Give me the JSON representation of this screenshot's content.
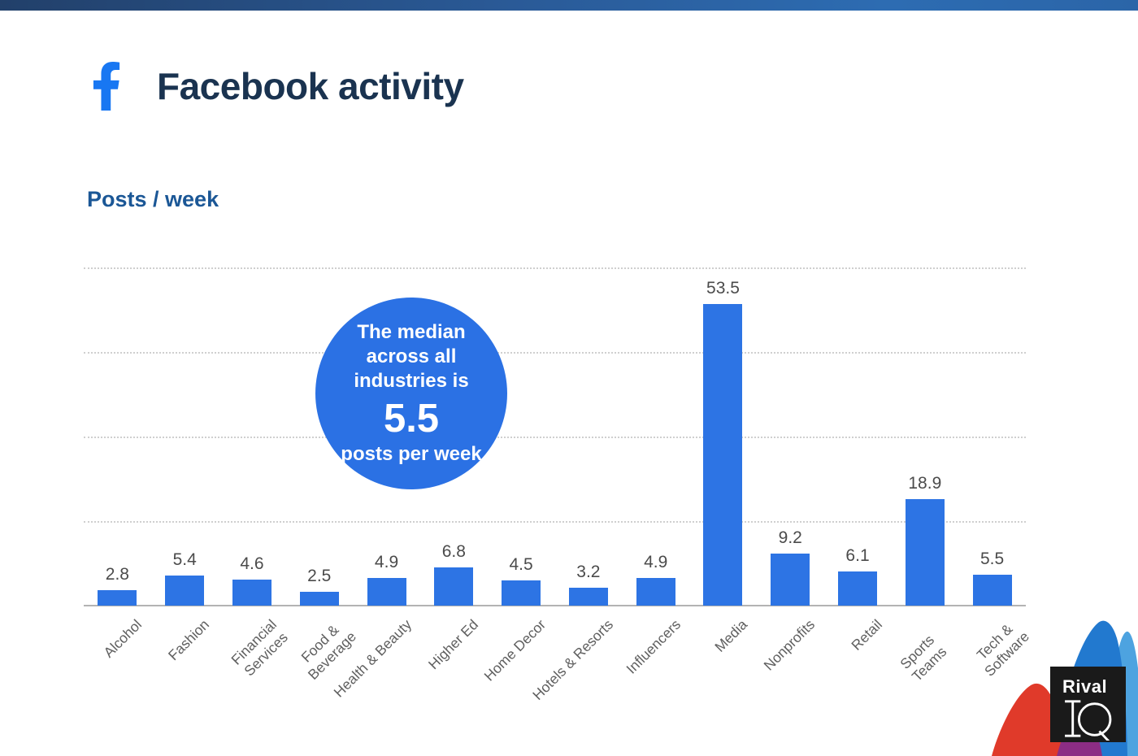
{
  "header": {
    "title": "Facebook activity",
    "facebook_icon": "facebook-f-glyph",
    "facebook_icon_color": "#1877f2",
    "title_color": "#1a3350"
  },
  "section": {
    "label": "Posts / week",
    "label_color": "#1b5796"
  },
  "annotation": {
    "line1": "The median",
    "line2": "across all",
    "line3": "industries is",
    "value": "5.5",
    "line4": "posts per week",
    "circle_color": "#2b71e4"
  },
  "chart_data": {
    "type": "bar",
    "title": "Posts / week",
    "categories": [
      "Alcohol",
      "Fashion",
      "Financial\nServices",
      "Food &\nBeverage",
      "Health & Beauty",
      "Higher Ed",
      "Home Decor",
      "Hotels & Resorts",
      "Influencers",
      "Media",
      "Nonprofits",
      "Retail",
      "Sports Teams",
      "Tech & Software"
    ],
    "values": [
      2.8,
      5.4,
      4.6,
      2.5,
      4.9,
      6.8,
      4.5,
      3.2,
      4.9,
      53.5,
      9.2,
      6.1,
      18.9,
      5.5
    ],
    "xlabel": "",
    "ylabel": "Posts / week",
    "ylim": [
      0,
      60
    ],
    "gridlines": [
      15,
      30,
      45,
      60
    ],
    "grid": "dotted horizontal, no y-axis tick labels",
    "legend": "none",
    "bar_color": "#2d74e4",
    "annotation": "The median across all industries is 5.5 posts per week"
  },
  "logo": {
    "line1": "Rival",
    "line2": "IQ",
    "background": "#1a1a1a"
  },
  "decoration_colors": {
    "wave_blue": "#2279cf",
    "wave_light_blue": "#4da3e0",
    "wave_red": "#e03a2a",
    "wave_purple": "#8c2d84"
  }
}
